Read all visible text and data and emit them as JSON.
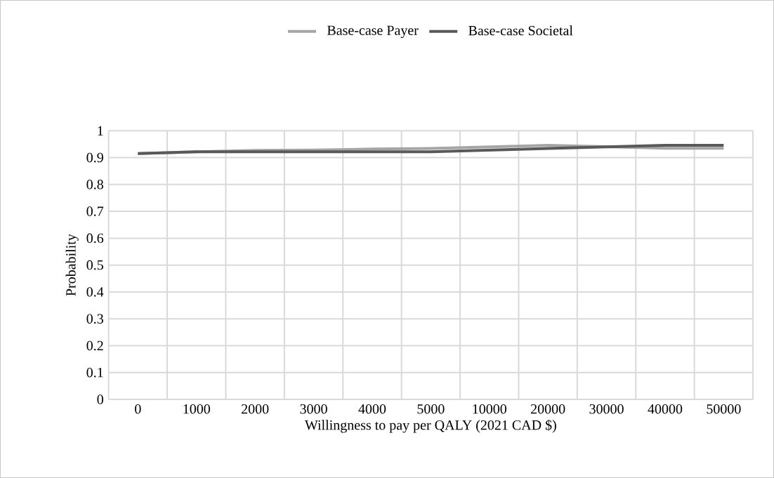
{
  "chart_data": {
    "type": "line",
    "xlabel": "Willingness to pay per QALY (2021 CAD $)",
    "ylabel": "Probability",
    "categories": [
      "0",
      "1000",
      "2000",
      "3000",
      "4000",
      "5000",
      "10000",
      "20000",
      "30000",
      "40000",
      "50000"
    ],
    "series": [
      {
        "name": "Base-case Payer",
        "color": "#a5a5a5",
        "values": [
          0.915,
          0.922,
          0.927,
          0.928,
          0.932,
          0.934,
          0.94,
          0.946,
          0.941,
          0.935,
          0.935
        ]
      },
      {
        "name": "Base-case Societal",
        "color": "#595959",
        "values": [
          0.915,
          0.922,
          0.922,
          0.922,
          0.922,
          0.922,
          0.928,
          0.934,
          0.94,
          0.946,
          0.946
        ]
      }
    ],
    "ylim": [
      0,
      1
    ],
    "yticks": [
      0,
      0.1,
      0.2,
      0.3,
      0.4,
      0.5,
      0.6,
      0.7,
      0.8,
      0.9,
      1
    ],
    "grid": true,
    "legend": "top",
    "marker": "none",
    "line_style": "solid"
  }
}
